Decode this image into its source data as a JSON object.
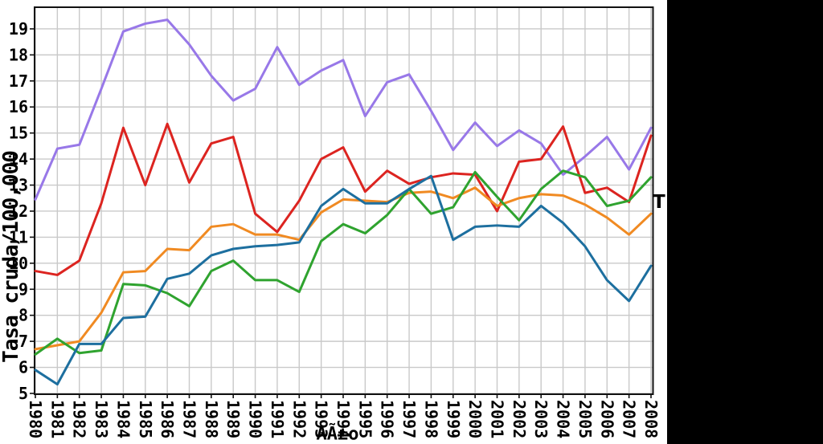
{
  "figure": {
    "background_color": "#ffffff",
    "black_panel_color": "#000000",
    "legend_fragment": "T"
  },
  "chart_data": {
    "type": "line",
    "title": "",
    "xlabel": "AÃ±o",
    "ylabel": "Tasa cruda/100,000",
    "grid": true,
    "grid_color": "#c9c9c9",
    "frame_color": "#111111",
    "xlim": [
      1980,
      2008
    ],
    "ylim": [
      5,
      19.8
    ],
    "yticks": [
      5,
      6,
      7,
      8,
      9,
      10,
      11,
      12,
      13,
      14,
      15,
      16,
      17,
      18,
      19
    ],
    "x": [
      1980,
      1981,
      1982,
      1983,
      1984,
      1985,
      1986,
      1987,
      1988,
      1989,
      1990,
      1991,
      1992,
      1993,
      1994,
      1995,
      1996,
      1997,
      1998,
      1999,
      2000,
      2001,
      2002,
      2003,
      2004,
      2005,
      2006,
      2007,
      2008
    ],
    "legend_position": "right-hidden-under-black-panel",
    "series": [
      {
        "name": "purple",
        "color": "#9878E8",
        "values": [
          12.45,
          14.4,
          14.55,
          16.7,
          18.9,
          19.2,
          19.35,
          18.4,
          17.2,
          16.25,
          16.7,
          18.3,
          16.85,
          17.4,
          17.8,
          15.65,
          16.95,
          17.25,
          15.85,
          14.35,
          15.4,
          14.5,
          15.1,
          14.6,
          13.4,
          14.1,
          14.85,
          13.6,
          15.2
        ]
      },
      {
        "name": "red",
        "color": "#DC2420",
        "values": [
          9.7,
          9.55,
          10.1,
          12.3,
          15.2,
          13.0,
          15.35,
          13.1,
          14.6,
          14.85,
          11.9,
          11.2,
          12.4,
          14.0,
          14.45,
          12.75,
          13.55,
          13.05,
          13.3,
          13.45,
          13.4,
          12.0,
          13.9,
          14.0,
          15.25,
          12.7,
          12.9,
          12.35,
          14.9
        ]
      },
      {
        "name": "orange",
        "color": "#F08A22",
        "values": [
          6.7,
          6.85,
          7.0,
          8.1,
          9.65,
          9.7,
          10.55,
          10.5,
          11.4,
          11.5,
          11.1,
          11.1,
          10.9,
          11.95,
          12.45,
          12.4,
          12.35,
          12.7,
          12.75,
          12.5,
          12.9,
          12.2,
          12.5,
          12.65,
          12.6,
          12.25,
          11.75,
          11.1,
          11.9
        ]
      },
      {
        "name": "green",
        "color": "#2FA32F",
        "values": [
          6.5,
          7.1,
          6.55,
          6.65,
          9.2,
          9.15,
          8.85,
          8.35,
          9.7,
          10.1,
          9.35,
          9.35,
          8.9,
          10.85,
          11.5,
          11.15,
          11.85,
          12.85,
          11.9,
          12.15,
          13.5,
          12.55,
          11.65,
          12.85,
          13.55,
          13.3,
          12.2,
          12.4,
          13.3
        ]
      },
      {
        "name": "blue",
        "color": "#1D6F9F",
        "values": [
          5.9,
          5.35,
          6.9,
          6.9,
          7.9,
          7.95,
          9.4,
          9.6,
          10.3,
          10.55,
          10.65,
          10.7,
          10.8,
          12.2,
          12.85,
          12.3,
          12.3,
          12.85,
          13.35,
          10.9,
          11.4,
          11.45,
          11.4,
          12.2,
          11.55,
          10.65,
          9.35,
          8.55,
          9.9
        ]
      }
    ]
  }
}
